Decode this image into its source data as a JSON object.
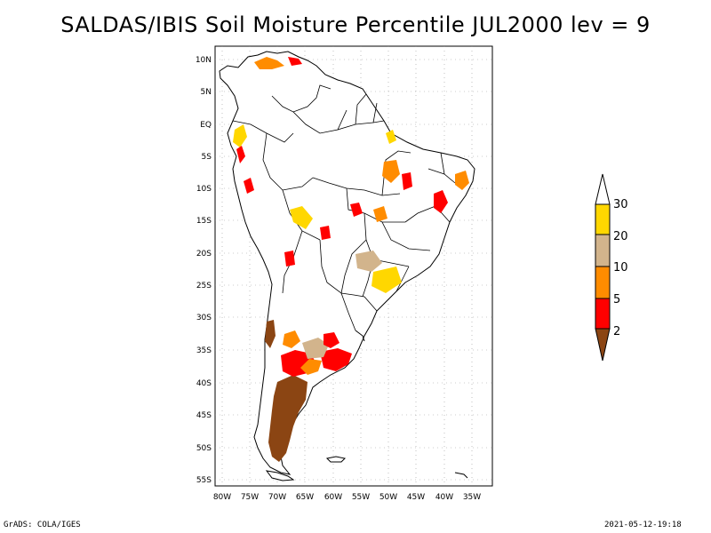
{
  "title": "SALDAS/IBIS Soil Moisture Percentile JUL2000 lev = 9",
  "footer": {
    "left": "GrADS: COLA/IGES",
    "right": "2021-05-12-19:18"
  },
  "map": {
    "lon_labels": [
      "80W",
      "75W",
      "70W",
      "65W",
      "60W",
      "55W",
      "50W",
      "45W",
      "40W",
      "35W"
    ],
    "lat_labels": [
      "10N",
      "5N",
      "EQ",
      "5S",
      "10S",
      "15S",
      "20S",
      "25S",
      "30S",
      "35S",
      "40S",
      "45S",
      "50S",
      "55S"
    ],
    "lon_range": [
      -81,
      -31
    ],
    "lat_range": [
      12,
      -56
    ],
    "grid": "dotted",
    "ocean_color": "#ffffff",
    "land_color": "#ffffff",
    "boundary_color": "#000000"
  },
  "legend": {
    "labels": [
      "30",
      "20",
      "10",
      "5",
      "2"
    ],
    "bins": [
      {
        "color": "#ffffff",
        "range": "above 30"
      },
      {
        "color": "#ffd700",
        "range": "20-30"
      },
      {
        "color": "#d2b48c",
        "range": "10-20"
      },
      {
        "color": "#ff8c00",
        "range": "5-10"
      },
      {
        "color": "#ff0000",
        "range": "2-5"
      },
      {
        "color": "#8b4513",
        "range": "below 2"
      }
    ]
  },
  "colors": {
    "dry_extreme": "#8b4513",
    "very_dry": "#ff0000",
    "dry": "#ff8c00",
    "moderate": "#d2b48c",
    "slightly_dry": "#ffd700"
  }
}
